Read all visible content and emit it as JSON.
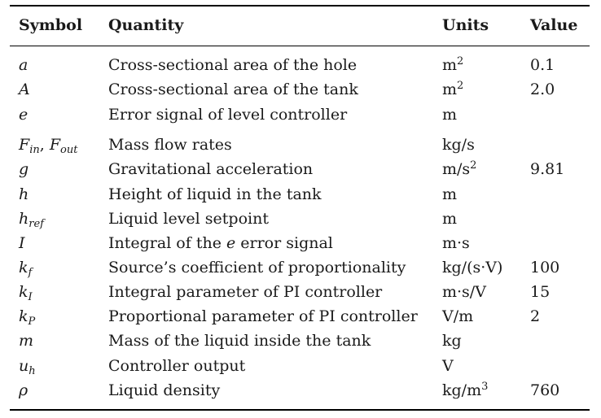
{
  "header": {
    "symbol": "Symbol",
    "quantity": "Quantity",
    "units": "Units",
    "value": "Value"
  },
  "rows": [
    {
      "symbol": "a",
      "sub": "",
      "symbol2": "",
      "sub2": "",
      "quantity": "Cross-sectional area of the hole",
      "qty_pre": "",
      "qty_em": "",
      "qty_post": "",
      "unit": "m",
      "unit_sup": "2",
      "value": "0.1"
    },
    {
      "symbol": "A",
      "sub": "",
      "symbol2": "",
      "sub2": "",
      "quantity": "Cross-sectional area of the tank",
      "qty_pre": "",
      "qty_em": "",
      "qty_post": "",
      "unit": "m",
      "unit_sup": "2",
      "value": "2.0"
    },
    {
      "symbol": "e",
      "sub": "",
      "symbol2": "",
      "sub2": "",
      "quantity": "Error signal of level controller",
      "qty_pre": "",
      "qty_em": "",
      "qty_post": "",
      "unit": "m",
      "unit_sup": "",
      "value": ""
    },
    {
      "symbol": "F",
      "sub": "in",
      "symbol2": "F",
      "sub2": "out",
      "quantity": "Mass flow rates",
      "qty_pre": "",
      "qty_em": "",
      "qty_post": "",
      "unit": "kg/s",
      "unit_sup": "",
      "value": ""
    },
    {
      "symbol": "g",
      "sub": "",
      "symbol2": "",
      "sub2": "",
      "quantity": "Gravitational acceleration",
      "qty_pre": "",
      "qty_em": "",
      "qty_post": "",
      "unit": "m/s",
      "unit_sup": "2",
      "value": "9.81"
    },
    {
      "symbol": "h",
      "sub": "",
      "symbol2": "",
      "sub2": "",
      "quantity": "Height of liquid in the tank",
      "qty_pre": "",
      "qty_em": "",
      "qty_post": "",
      "unit": "m",
      "unit_sup": "",
      "value": ""
    },
    {
      "symbol": "h",
      "sub": "ref",
      "symbol2": "",
      "sub2": "",
      "quantity": "Liquid level setpoint",
      "qty_pre": "",
      "qty_em": "",
      "qty_post": "",
      "unit": "m",
      "unit_sup": "",
      "value": ""
    },
    {
      "symbol": "I",
      "sub": "",
      "symbol2": "",
      "sub2": "",
      "quantity": "",
      "qty_pre": "Integral of the ",
      "qty_em": "e",
      "qty_post": " error signal",
      "unit": "m·s",
      "unit_sup": "",
      "value": ""
    },
    {
      "symbol": "k",
      "sub": "f",
      "symbol2": "",
      "sub2": "",
      "quantity": "Source’s coefficient of proportionality",
      "qty_pre": "",
      "qty_em": "",
      "qty_post": "",
      "unit": "kg/(s·V)",
      "unit_sup": "",
      "value": "100"
    },
    {
      "symbol": "k",
      "sub": "I",
      "symbol2": "",
      "sub2": "",
      "quantity": "Integral parameter of PI controller",
      "qty_pre": "",
      "qty_em": "",
      "qty_post": "",
      "unit": "m·s/V",
      "unit_sup": "",
      "value": "15"
    },
    {
      "symbol": "k",
      "sub": "P",
      "symbol2": "",
      "sub2": "",
      "quantity": "Proportional parameter of PI controller",
      "qty_pre": "",
      "qty_em": "",
      "qty_post": "",
      "unit": "V/m",
      "unit_sup": "",
      "value": "2"
    },
    {
      "symbol": "m",
      "sub": "",
      "symbol2": "",
      "sub2": "",
      "quantity": "Mass of the liquid inside the tank",
      "qty_pre": "",
      "qty_em": "",
      "qty_post": "",
      "unit": "kg",
      "unit_sup": "",
      "value": ""
    },
    {
      "symbol": "u",
      "sub": "h",
      "symbol2": "",
      "sub2": "",
      "quantity": "Controller output",
      "qty_pre": "",
      "qty_em": "",
      "qty_post": "",
      "unit": "V",
      "unit_sup": "",
      "value": ""
    },
    {
      "symbol": "ρ",
      "sub": "",
      "symbol2": "",
      "sub2": "",
      "quantity": "Liquid density",
      "qty_pre": "",
      "qty_em": "",
      "qty_post": "",
      "unit": "kg/m",
      "unit_sup": "3",
      "value": "760"
    }
  ]
}
